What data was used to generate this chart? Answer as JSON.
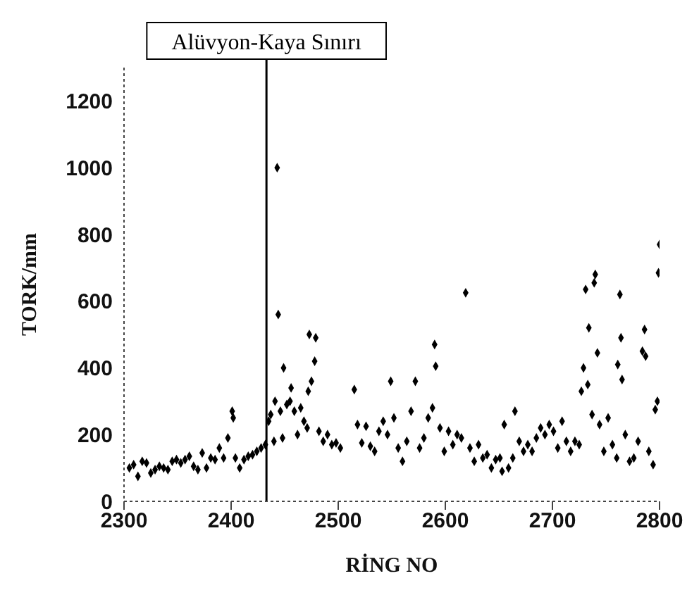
{
  "chart_data": {
    "type": "scatter",
    "xlabel": "RİNG NO",
    "ylabel": "TORK/mm",
    "xlim": [
      2300,
      2800
    ],
    "xticks": [
      2300,
      2400,
      2500,
      2600,
      2700,
      2800
    ],
    "ylim": [
      0,
      1300
    ],
    "yticks": [
      0,
      200,
      400,
      600,
      800,
      1000,
      1200
    ],
    "grid": false,
    "legend": false,
    "marker": "diamond",
    "ref_lines": [
      {
        "axis": "x",
        "value": 2433,
        "label": "Alüvyon-Kaya Sınırı",
        "color": "#000000"
      }
    ],
    "series": [
      {
        "color": "#000000",
        "x": [
          2305,
          2309,
          2313,
          2317,
          2321,
          2325,
          2329,
          2333,
          2337,
          2341,
          2345,
          2349,
          2353,
          2357,
          2361,
          2365,
          2369,
          2373,
          2377,
          2381,
          2385,
          2389,
          2393,
          2397,
          2401,
          2402,
          2404,
          2408,
          2412,
          2416,
          2420,
          2424,
          2428,
          2432,
          2435,
          2437,
          2440,
          2441,
          2443,
          2444,
          2446,
          2448,
          2449,
          2452,
          2455,
          2456,
          2459,
          2462,
          2465,
          2468,
          2471,
          2472,
          2473,
          2475,
          2478,
          2479,
          2482,
          2486,
          2490,
          2494,
          2498,
          2502,
          2515,
          2518,
          2522,
          2526,
          2530,
          2534,
          2538,
          2542,
          2546,
          2549,
          2552,
          2556,
          2560,
          2564,
          2568,
          2572,
          2576,
          2580,
          2584,
          2588,
          2590,
          2591,
          2595,
          2599,
          2603,
          2607,
          2611,
          2615,
          2619,
          2623,
          2627,
          2631,
          2635,
          2639,
          2643,
          2647,
          2651,
          2653,
          2655,
          2659,
          2663,
          2665,
          2669,
          2673,
          2677,
          2681,
          2685,
          2689,
          2693,
          2697,
          2701,
          2705,
          2709,
          2713,
          2717,
          2721,
          2725,
          2727,
          2729,
          2731,
          2733,
          2734,
          2737,
          2739,
          2740,
          2742,
          2744,
          2748,
          2752,
          2756,
          2760,
          2761,
          2763,
          2764,
          2765,
          2768,
          2772,
          2776,
          2780,
          2784,
          2786,
          2787,
          2790,
          2794,
          2796,
          2798,
          2799,
          2800
        ],
        "values": [
          100,
          110,
          75,
          120,
          115,
          85,
          95,
          105,
          100,
          95,
          120,
          125,
          115,
          125,
          135,
          105,
          95,
          145,
          100,
          130,
          125,
          160,
          130,
          190,
          270,
          250,
          130,
          100,
          125,
          135,
          140,
          150,
          160,
          170,
          240,
          260,
          180,
          300,
          1000,
          560,
          270,
          190,
          400,
          290,
          300,
          340,
          270,
          200,
          280,
          240,
          220,
          330,
          500,
          360,
          420,
          490,
          210,
          180,
          200,
          170,
          175,
          160,
          335,
          230,
          175,
          225,
          165,
          150,
          210,
          240,
          200,
          360,
          250,
          160,
          120,
          180,
          270,
          360,
          160,
          190,
          250,
          280,
          470,
          405,
          220,
          150,
          210,
          170,
          200,
          190,
          625,
          160,
          120,
          170,
          130,
          140,
          100,
          125,
          130,
          90,
          230,
          100,
          130,
          270,
          180,
          150,
          170,
          150,
          190,
          220,
          200,
          230,
          210,
          160,
          240,
          180,
          150,
          180,
          170,
          330,
          400,
          635,
          350,
          520,
          260,
          655,
          680,
          445,
          230,
          150,
          250,
          170,
          130,
          410,
          620,
          490,
          365,
          200,
          120,
          130,
          180,
          450,
          515,
          435,
          150,
          110,
          275,
          300,
          685,
          770
        ]
      }
    ]
  }
}
